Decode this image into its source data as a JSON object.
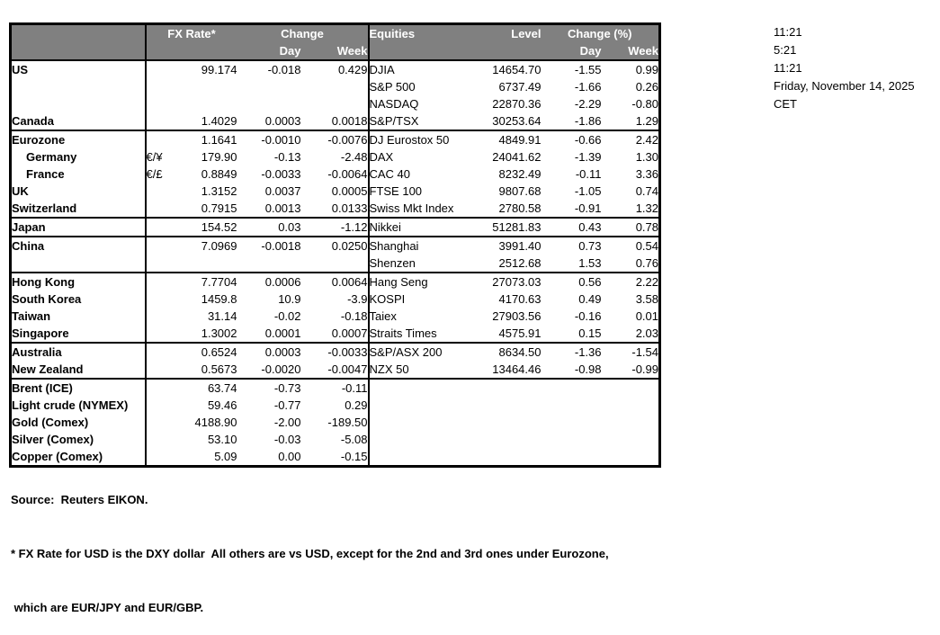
{
  "colors": {
    "header_bg": "#808080",
    "header_text": "#ffffff",
    "border": "#000000",
    "text": "#000000",
    "background": "#ffffff"
  },
  "table": {
    "headers": {
      "fx_rate": "FX Rate*",
      "change": "Change",
      "day": "Day",
      "week": "Week",
      "equities": "Equities",
      "level": "Level",
      "change_pct": "Change (%)"
    },
    "rows": [
      {
        "label": "US",
        "sym": "",
        "fx": "99.174",
        "fxd": "-0.018",
        "fxw": "0.429",
        "eq": "DJIA",
        "lvl": "14654.70",
        "eqd": "-1.55",
        "eqw": "0.99",
        "group": false,
        "indent": false
      },
      {
        "label": "",
        "sym": "",
        "fx": "",
        "fxd": "",
        "fxw": "",
        "eq": "S&P 500",
        "lvl": "6737.49",
        "eqd": "-1.66",
        "eqw": "0.26",
        "group": false,
        "indent": false
      },
      {
        "label": "",
        "sym": "",
        "fx": "",
        "fxd": "",
        "fxw": "",
        "eq": "NASDAQ",
        "lvl": "22870.36",
        "eqd": "-2.29",
        "eqw": "-0.80",
        "group": false,
        "indent": false
      },
      {
        "label": "Canada",
        "sym": "",
        "fx": "1.4029",
        "fxd": "0.0003",
        "fxw": "0.0018",
        "eq": "S&P/TSX",
        "lvl": "30253.64",
        "eqd": "-1.86",
        "eqw": "1.29",
        "group": false,
        "indent": false
      },
      {
        "label": "Eurozone",
        "sym": "",
        "fx": "1.1641",
        "fxd": "-0.0010",
        "fxw": "-0.0076",
        "eq": "DJ Eurostox 50",
        "lvl": "4849.91",
        "eqd": "-0.66",
        "eqw": "2.42",
        "group": true,
        "indent": false
      },
      {
        "label": "Germany",
        "sym": "€/¥",
        "fx": "179.90",
        "fxd": "-0.13",
        "fxw": "-2.48",
        "eq": "DAX",
        "lvl": "24041.62",
        "eqd": "-1.39",
        "eqw": "1.30",
        "group": false,
        "indent": true
      },
      {
        "label": "France",
        "sym": "€/£",
        "fx": "0.8849",
        "fxd": "-0.0033",
        "fxw": "-0.0064",
        "eq": "CAC 40",
        "lvl": "8232.49",
        "eqd": "-0.11",
        "eqw": "3.36",
        "group": false,
        "indent": true
      },
      {
        "label": "UK",
        "sym": "",
        "fx": "1.3152",
        "fxd": "0.0037",
        "fxw": "0.0005",
        "eq": "FTSE 100",
        "lvl": "9807.68",
        "eqd": "-1.05",
        "eqw": "0.74",
        "group": false,
        "indent": false
      },
      {
        "label": "Switzerland",
        "sym": "",
        "fx": "0.7915",
        "fxd": "0.0013",
        "fxw": "0.0133",
        "eq": "Swiss Mkt Index",
        "lvl": "2780.58",
        "eqd": "-0.91",
        "eqw": "1.32",
        "group": false,
        "indent": false
      },
      {
        "label": "Japan",
        "sym": "",
        "fx": "154.52",
        "fxd": "0.03",
        "fxw": "-1.12",
        "eq": "Nikkei",
        "lvl": "51281.83",
        "eqd": "0.43",
        "eqw": "0.78",
        "group": true,
        "indent": false
      },
      {
        "label": "China",
        "sym": "",
        "fx": "7.0969",
        "fxd": "-0.0018",
        "fxw": "0.0250",
        "eq": "Shanghai",
        "lvl": "3991.40",
        "eqd": "0.73",
        "eqw": "0.54",
        "group": true,
        "indent": false
      },
      {
        "label": "",
        "sym": "",
        "fx": "",
        "fxd": "",
        "fxw": "",
        "eq": "Shenzen",
        "lvl": "2512.68",
        "eqd": "1.53",
        "eqw": "0.76",
        "group": false,
        "indent": false
      },
      {
        "label": "Hong Kong",
        "sym": "",
        "fx": "7.7704",
        "fxd": "0.0006",
        "fxw": "0.0064",
        "eq": "Hang Seng",
        "lvl": "27073.03",
        "eqd": "0.56",
        "eqw": "2.22",
        "group": true,
        "indent": false
      },
      {
        "label": "South Korea",
        "sym": "",
        "fx": "1459.8",
        "fxd": "10.9",
        "fxw": "-3.9",
        "eq": "KOSPI",
        "lvl": "4170.63",
        "eqd": "0.49",
        "eqw": "3.58",
        "group": false,
        "indent": false
      },
      {
        "label": "Taiwan",
        "sym": "",
        "fx": "31.14",
        "fxd": "-0.02",
        "fxw": "-0.18",
        "eq": "Taiex",
        "lvl": "27903.56",
        "eqd": "-0.16",
        "eqw": "0.01",
        "group": false,
        "indent": false
      },
      {
        "label": "Singapore",
        "sym": "",
        "fx": "1.3002",
        "fxd": "0.0001",
        "fxw": "0.0007",
        "eq": "Straits Times",
        "lvl": "4575.91",
        "eqd": "0.15",
        "eqw": "2.03",
        "group": false,
        "indent": false
      },
      {
        "label": "Australia",
        "sym": "",
        "fx": "0.6524",
        "fxd": "0.0003",
        "fxw": "-0.0033",
        "eq": "S&P/ASX 200",
        "lvl": "8634.50",
        "eqd": "-1.36",
        "eqw": "-1.54",
        "group": true,
        "indent": false
      },
      {
        "label": "New Zealand",
        "sym": "",
        "fx": "0.5673",
        "fxd": "-0.0020",
        "fxw": "-0.0047",
        "eq": "NZX 50",
        "lvl": "13464.46",
        "eqd": "-0.98",
        "eqw": "-0.99",
        "group": false,
        "indent": false
      },
      {
        "label": "Brent (ICE)",
        "sym": "",
        "fx": "63.74",
        "fxd": "-0.73",
        "fxw": "-0.11",
        "eq": "",
        "lvl": "",
        "eqd": "",
        "eqw": "",
        "group": true,
        "indent": false
      },
      {
        "label": "Light crude (NYMEX)",
        "sym": "",
        "fx": "59.46",
        "fxd": "-0.77",
        "fxw": "0.29",
        "eq": "",
        "lvl": "",
        "eqd": "",
        "eqw": "",
        "group": false,
        "indent": false
      },
      {
        "label": "Gold (Comex)",
        "sym": "",
        "fx": "4188.90",
        "fxd": "-2.00",
        "fxw": "-189.50",
        "eq": "",
        "lvl": "",
        "eqd": "",
        "eqw": "",
        "group": false,
        "indent": false
      },
      {
        "label": "Silver (Comex)",
        "sym": "",
        "fx": "53.10",
        "fxd": "-0.03",
        "fxw": "-5.08",
        "eq": "",
        "lvl": "",
        "eqd": "",
        "eqw": "",
        "group": false,
        "indent": false
      },
      {
        "label": "Copper (Comex)",
        "sym": "",
        "fx": "5.09",
        "fxd": "0.00",
        "fxw": "-0.15",
        "eq": "",
        "lvl": "",
        "eqd": "",
        "eqw": "",
        "group": false,
        "indent": false
      }
    ]
  },
  "timestamps": {
    "lines": [
      "11:21",
      "5:21",
      "11:21",
      "Friday, November 14, 2025",
      "CET"
    ]
  },
  "footer": {
    "lines": [
      "Source:  Reuters EIKON.",
      "* FX Rate for USD is the DXY dollar  All others are vs USD, except for the 2nd and 3rd ones under Eurozone,",
      " which are EUR/JPY and EUR/GBP."
    ]
  }
}
